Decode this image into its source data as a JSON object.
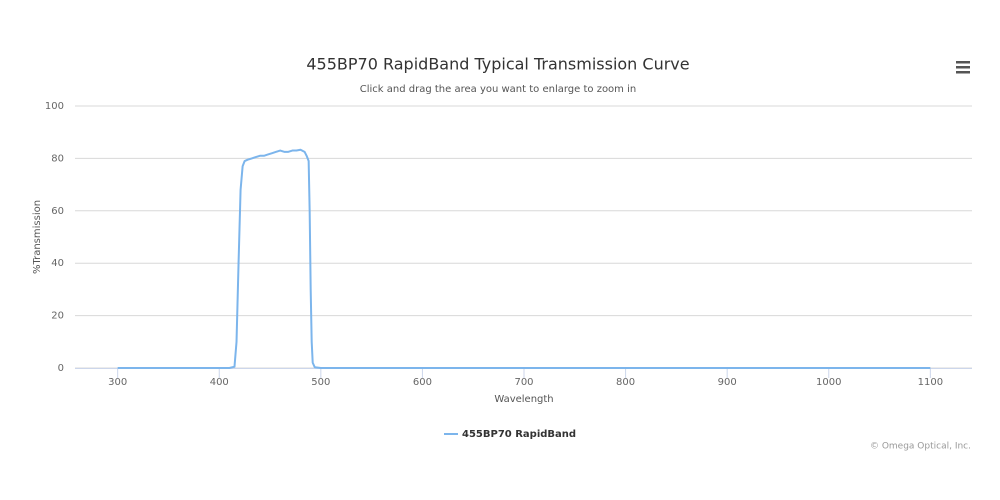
{
  "chart_data": {
    "type": "line",
    "title": "455BP70 RapidBand Typical Transmission Curve",
    "subtitle": "Click and drag the area you want to enlarge to zoom in",
    "x_label": "Wavelength",
    "y_label": "%Transmission",
    "credit": "© Omega Optical, Inc.",
    "x": [
      300,
      410,
      415,
      417,
      419,
      421,
      423,
      425,
      428,
      432,
      436,
      440,
      444,
      448,
      452,
      456,
      460,
      464,
      468,
      472,
      476,
      480,
      484,
      486,
      488,
      489,
      490,
      491,
      492,
      494,
      500,
      1100
    ],
    "series": [
      {
        "name": "455BP70 RapidBand",
        "color": "#7cb5ec",
        "values": [
          0,
          0,
          0.5,
          10,
          40,
          68,
          77,
          79,
          79.5,
          80,
          80.5,
          81,
          81,
          81.5,
          82,
          82.5,
          83,
          82.5,
          82.5,
          83,
          83,
          83.3,
          82.5,
          81,
          79,
          60,
          30,
          10,
          2,
          0.3,
          0,
          0
        ]
      }
    ],
    "xlim": [
      258,
      1141
    ],
    "xticks": [
      300,
      400,
      500,
      600,
      700,
      800,
      900,
      1000,
      1100
    ],
    "ylim": [
      0,
      100
    ],
    "yticks": [
      0,
      20,
      40,
      60,
      80,
      100
    ],
    "grid": true,
    "legend": "bottom"
  }
}
